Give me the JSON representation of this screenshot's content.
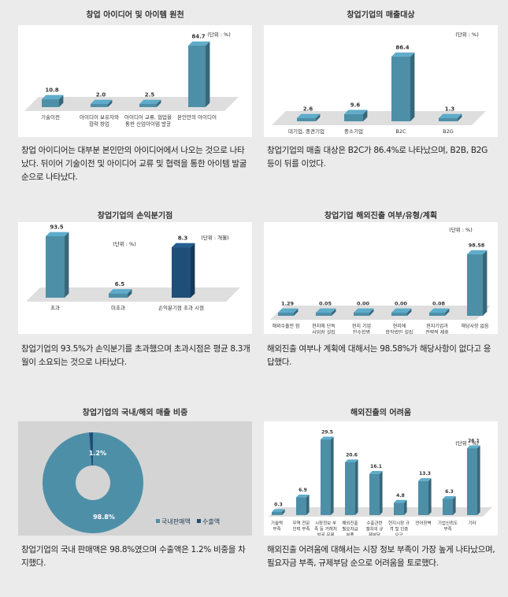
{
  "charts": [
    {
      "title": "창업 아이디어 및 아이템 원천",
      "unit": "(단위 : %)",
      "caption": "창업 아이디어는 대부분 본인만의 아이디어에서 나오는 것으로 나타났다. 뒤이어 기술이전 및 아이디어 교류 및 협력을 통한 아이템 발굴 순으로 나타났다."
    },
    {
      "title": "창업기업의 매출대상",
      "unit": "(단위 : %)",
      "caption": "창업기업의 매출 대상은 B2C가 86.4%로 나타났으며, B2B, B2G 등이 뒤를 이었다."
    },
    {
      "title": "창업기업의 손익분기점",
      "unit": "(단위 : %)",
      "unit2": "(단위 : 개월)",
      "caption": "창업기업의 93.5%가 손익분기를 초과했으며 초과시점은 평균 8.3개월이 소요되는 것으로 나타났다."
    },
    {
      "title": "창업기업 해외진출 여부/유형/계획",
      "unit": "(단위 : %)",
      "caption": "해외진출 여부나 계획에 대해서는 98.58%가 해당사항이 없다고 응답했다."
    },
    {
      "title": "창업기업의 국내/해외 매출 비중",
      "caption": "창업기업의 국내 판매액은 98.8%였으며 수출액은 1.2% 비중을 차지했다."
    },
    {
      "title": "해외진출의 어려움",
      "unit": "(단위 : %)",
      "caption": "해외진출 어려움에 대해서는 시장 정보 부족이 가장 높게 나타났으며, 필요자금 부족, 규제부담 순으로 어려움을 토로했다."
    }
  ],
  "chart_data": [
    {
      "type": "bar",
      "title": "창업 아이디어 및 아이템 원천",
      "categories": [
        [
          "기술이전"
        ],
        [
          "아이디어 보유자와",
          "협력 창업"
        ],
        [
          "아이디어 교류, 협업을",
          "통한 신업아이템 발굴"
        ],
        [
          "본인만의 아이디어"
        ]
      ],
      "values": [
        10.8,
        2.0,
        2.5,
        84.7
      ],
      "labels": [
        "10.8",
        "2.0",
        "2.5",
        "84.7"
      ],
      "ylim": [
        0,
        84.7
      ],
      "colors": [
        "#4e8fa8"
      ]
    },
    {
      "type": "bar",
      "title": "창업기업의 매출대상",
      "categories": [
        [
          "대기업, 중견기업"
        ],
        [
          "중소기업"
        ],
        [
          "B2C"
        ],
        [
          "B2G"
        ]
      ],
      "values": [
        2.6,
        9.6,
        86.4,
        1.3
      ],
      "labels": [
        "2.6",
        "9.6",
        "86.4",
        "1.3"
      ],
      "ylim": [
        0,
        86.4
      ],
      "colors": [
        "#4e8fa8"
      ]
    },
    {
      "type": "bar",
      "title": "창업기업의 손익분기점",
      "categories": [
        [
          "초과"
        ],
        [
          "미초과"
        ],
        [
          "손익분기점 초과 시점"
        ]
      ],
      "values": [
        93.5,
        6.5,
        8.3
      ],
      "labels": [
        "93.5",
        "6.5",
        "8.3"
      ],
      "ylim": [
        0,
        93.5
      ],
      "third_bar_fraction": 0.82,
      "colors": [
        "#4e8fa8",
        "#4e8fa8",
        "#1f4e79"
      ]
    },
    {
      "type": "bar",
      "title": "창업기업 해외진출 여부/유형/계획",
      "categories": [
        [
          "해외수출만 함"
        ],
        [
          "현지에 단독",
          "사업장 설립"
        ],
        [
          "현지 기업",
          "인수합병"
        ],
        [
          "현지에",
          "합작법인 설립"
        ],
        [
          "현지기업과",
          "전략적 제휴"
        ],
        [
          "해당사항 없음"
        ]
      ],
      "values": [
        1.29,
        0.05,
        0.0,
        0.0,
        0.08,
        98.58
      ],
      "labels": [
        "1.29",
        "0.05",
        "0.00",
        "0.00",
        "0.08",
        "98.58"
      ],
      "ylim": [
        0,
        98.58
      ],
      "colors": [
        "#4e8fa8"
      ]
    },
    {
      "type": "pie",
      "title": "창업기업의 국내/해외 매출 비중",
      "categories": [
        "국내판매액",
        "수출액"
      ],
      "values": [
        98.8,
        1.2
      ],
      "labels": [
        "98.8%",
        "1.2%"
      ],
      "colors": [
        "#4e8fa8",
        "#1f4e79"
      ],
      "legend": "bottom-right"
    },
    {
      "type": "bar",
      "title": "해외진출의 어려움",
      "categories": [
        [
          "기술력",
          "부족"
        ],
        [
          "무역 전문",
          "인력 부족"
        ],
        [
          "시장정보 부",
          "족 등 거래처",
          "발굴 문제"
        ],
        [
          "해외진출",
          "필요자금",
          "부족"
        ],
        [
          "수출관련",
          "절차의 규",
          "제부담"
        ],
        [
          "현지시장 규",
          "격 및 인증",
          "요구"
        ],
        [
          "언어장벽"
        ],
        [
          "기업신뢰도",
          "부족"
        ],
        [
          "기타"
        ]
      ],
      "values": [
        0.3,
        6.9,
        29.5,
        20.6,
        16.1,
        4.8,
        13.3,
        6.3,
        26.1
      ],
      "labels": [
        "0.3",
        "6.9",
        "29.5",
        "20.6",
        "16.1",
        "4.8",
        "13.3",
        "6.3",
        "26.1"
      ],
      "ylim": [
        0,
        29.5
      ],
      "colors": [
        "#4e8fa8"
      ]
    }
  ]
}
